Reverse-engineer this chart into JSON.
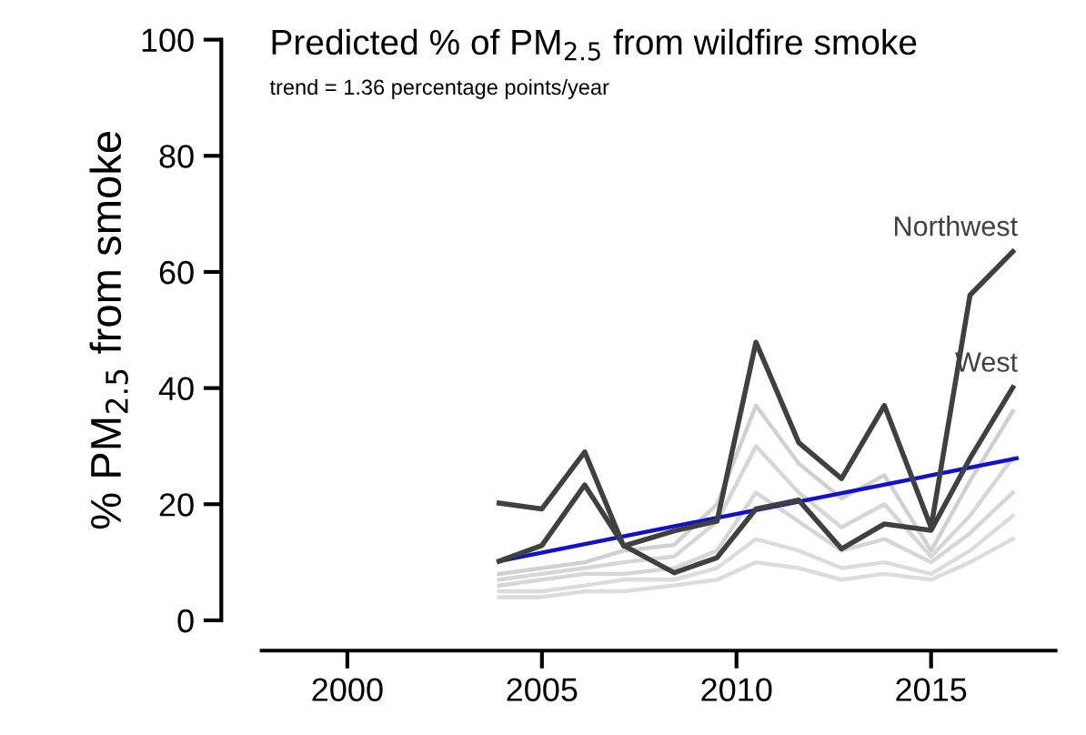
{
  "chart_data": {
    "type": "line",
    "title": "Predicted % of PM$_{2.5}$ from wildfire smoke",
    "subtitle": "trend = 1.36 percentage points/year",
    "ylabel": "% PM$_{2.5}$ from smoke",
    "x": [
      2003.9,
      2005.0,
      2006.1,
      2007.1,
      2008.4,
      2009.5,
      2010.5,
      2011.6,
      2012.7,
      2013.8,
      2015.0,
      2016.0,
      2017.1
    ],
    "series": [
      {
        "color": "#d0d0d0",
        "values": [
          8,
          9,
          10,
          12,
          13,
          20,
          37,
          27,
          21,
          25,
          12,
          24,
          36
        ]
      },
      {
        "color": "#d6d6d6",
        "values": [
          7,
          8,
          9,
          10,
          11,
          17,
          30,
          22,
          16,
          20,
          11,
          18,
          28
        ]
      },
      {
        "color": "#d6d6d6",
        "values": [
          6,
          7,
          8,
          8,
          9,
          12,
          22,
          17,
          12,
          14,
          10,
          15,
          22
        ]
      },
      {
        "color": "#dcdcdc",
        "values": [
          5,
          5,
          6,
          7,
          7,
          9,
          14,
          12,
          9,
          10,
          8,
          12,
          18
        ]
      },
      {
        "color": "#dcdcdc",
        "values": [
          4,
          4,
          5,
          5,
          6,
          7,
          10,
          9,
          7,
          8,
          7,
          10,
          14
        ]
      },
      {
        "name": "Northwest",
        "color": "#404040",
        "values": [
          20.2,
          19.2,
          29,
          12.8,
          15.4,
          17.1,
          47.9,
          30.6,
          24.4,
          37,
          16,
          56,
          63.5
        ]
      },
      {
        "name": "West",
        "color": "#404040",
        "values": [
          10.2,
          12.9,
          23.3,
          12.9,
          8.2,
          10.8,
          19.2,
          20.7,
          12.3,
          16.6,
          15.5,
          27.9,
          40.1
        ]
      },
      {
        "color": "#1010d0",
        "x": [
          2003.9,
          2017.2
        ],
        "values": [
          10.2,
          27.9
        ]
      }
    ],
    "xlim": [
      1997.8,
      2018.2
    ],
    "xticks": [
      2000,
      2005,
      2010,
      2015
    ],
    "ylim": [
      0,
      100
    ],
    "yticks": [
      0,
      20,
      40,
      60,
      80,
      100
    ],
    "grid": false,
    "legend": false
  }
}
